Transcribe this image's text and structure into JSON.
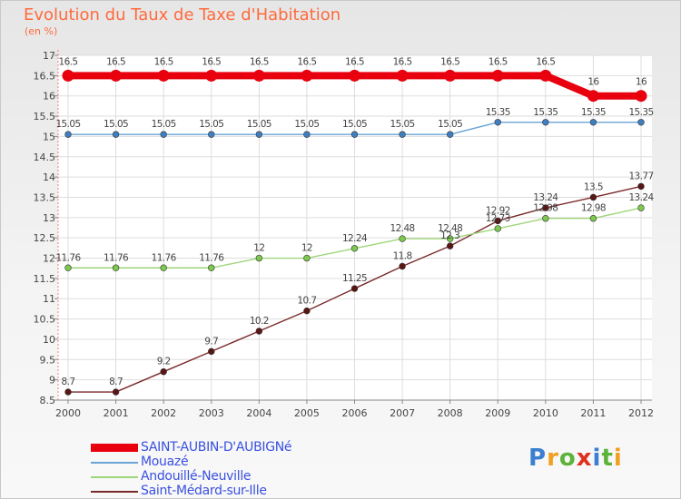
{
  "title": "Evolution du Taux de Taxe d'Habitation",
  "subtitle": "(en %)",
  "logo": "Proxiti",
  "chart_data": {
    "type": "line",
    "title": "Evolution du Taux de Taxe d'Habitation",
    "subtitle": "(en %)",
    "ylim": [
      8.5,
      17
    ],
    "y_ticks": [
      8.5,
      9,
      9.5,
      10,
      10.5,
      11,
      11.5,
      12,
      12.5,
      13,
      13.5,
      14,
      14.5,
      15,
      15.5,
      16,
      16.5,
      17
    ],
    "y_tick_labels": [
      "8.5",
      "9",
      "9.5",
      "10",
      "10.5",
      "11",
      "11.5",
      "12",
      "12.5",
      "13",
      "13.5",
      "14",
      "14.5",
      "15",
      "15.5",
      "16",
      "16.5",
      "17"
    ],
    "categories": [
      "2000",
      "2001",
      "2002",
      "2003",
      "2004",
      "2005",
      "2006",
      "2007",
      "2008",
      "2009",
      "2010",
      "2011",
      "2012"
    ],
    "grid": true,
    "legend_position": "bottom-left",
    "series": [
      {
        "name": "SAINT-AUBIN-D'AUBIGNé",
        "color": "#e8000e",
        "marker": "#e8000e",
        "thick": true,
        "values": [
          16.5,
          16.5,
          16.5,
          16.5,
          16.5,
          16.5,
          16.5,
          16.5,
          16.5,
          16.5,
          16.5,
          16,
          16
        ],
        "labels": [
          "16.5",
          "16.5",
          "16.5",
          "16.5",
          "16.5",
          "16.5",
          "16.5",
          "16.5",
          "16.5",
          "16.5",
          "16.5",
          "16",
          "16"
        ]
      },
      {
        "name": "Mouazé",
        "color": "#6aa3d5",
        "marker": "#3f7fc0",
        "thick": false,
        "values": [
          15.05,
          15.05,
          15.05,
          15.05,
          15.05,
          15.05,
          15.05,
          15.05,
          15.05,
          15.35,
          15.35,
          15.35,
          15.35
        ],
        "labels": [
          "15.05",
          "15.05",
          "15.05",
          "15.05",
          "15.05",
          "15.05",
          "15.05",
          "15.05",
          "15.05",
          "15.35",
          "15.35",
          "15.35",
          "15.35"
        ]
      },
      {
        "name": "Andouillé-Neuville",
        "color": "#9fd67a",
        "marker": "#7cc94e",
        "thick": false,
        "values": [
          11.76,
          11.76,
          11.76,
          11.76,
          12,
          12,
          12.24,
          12.48,
          12.48,
          12.73,
          12.98,
          12.98,
          13.24
        ],
        "labels": [
          "11.76",
          "11.76",
          "11.76",
          "11.76",
          "12",
          "12",
          "12.24",
          "12.48",
          "12.48",
          "12.73",
          "12.98",
          "12.98",
          "13.24"
        ]
      },
      {
        "name": "Saint-Médard-sur-Ille",
        "color": "#7a2a2a",
        "marker": "#5a1515",
        "thick": false,
        "values": [
          8.7,
          8.7,
          9.2,
          9.7,
          10.2,
          10.7,
          11.25,
          11.8,
          12.3,
          12.92,
          13.24,
          13.5,
          13.77
        ],
        "labels": [
          "8.7",
          "8.7",
          "9.2",
          "9.7",
          "10.2",
          "10.7",
          "11.25",
          "11.8",
          "12.3",
          "12.92",
          "13.24",
          "13.5",
          "13.77"
        ]
      }
    ]
  }
}
